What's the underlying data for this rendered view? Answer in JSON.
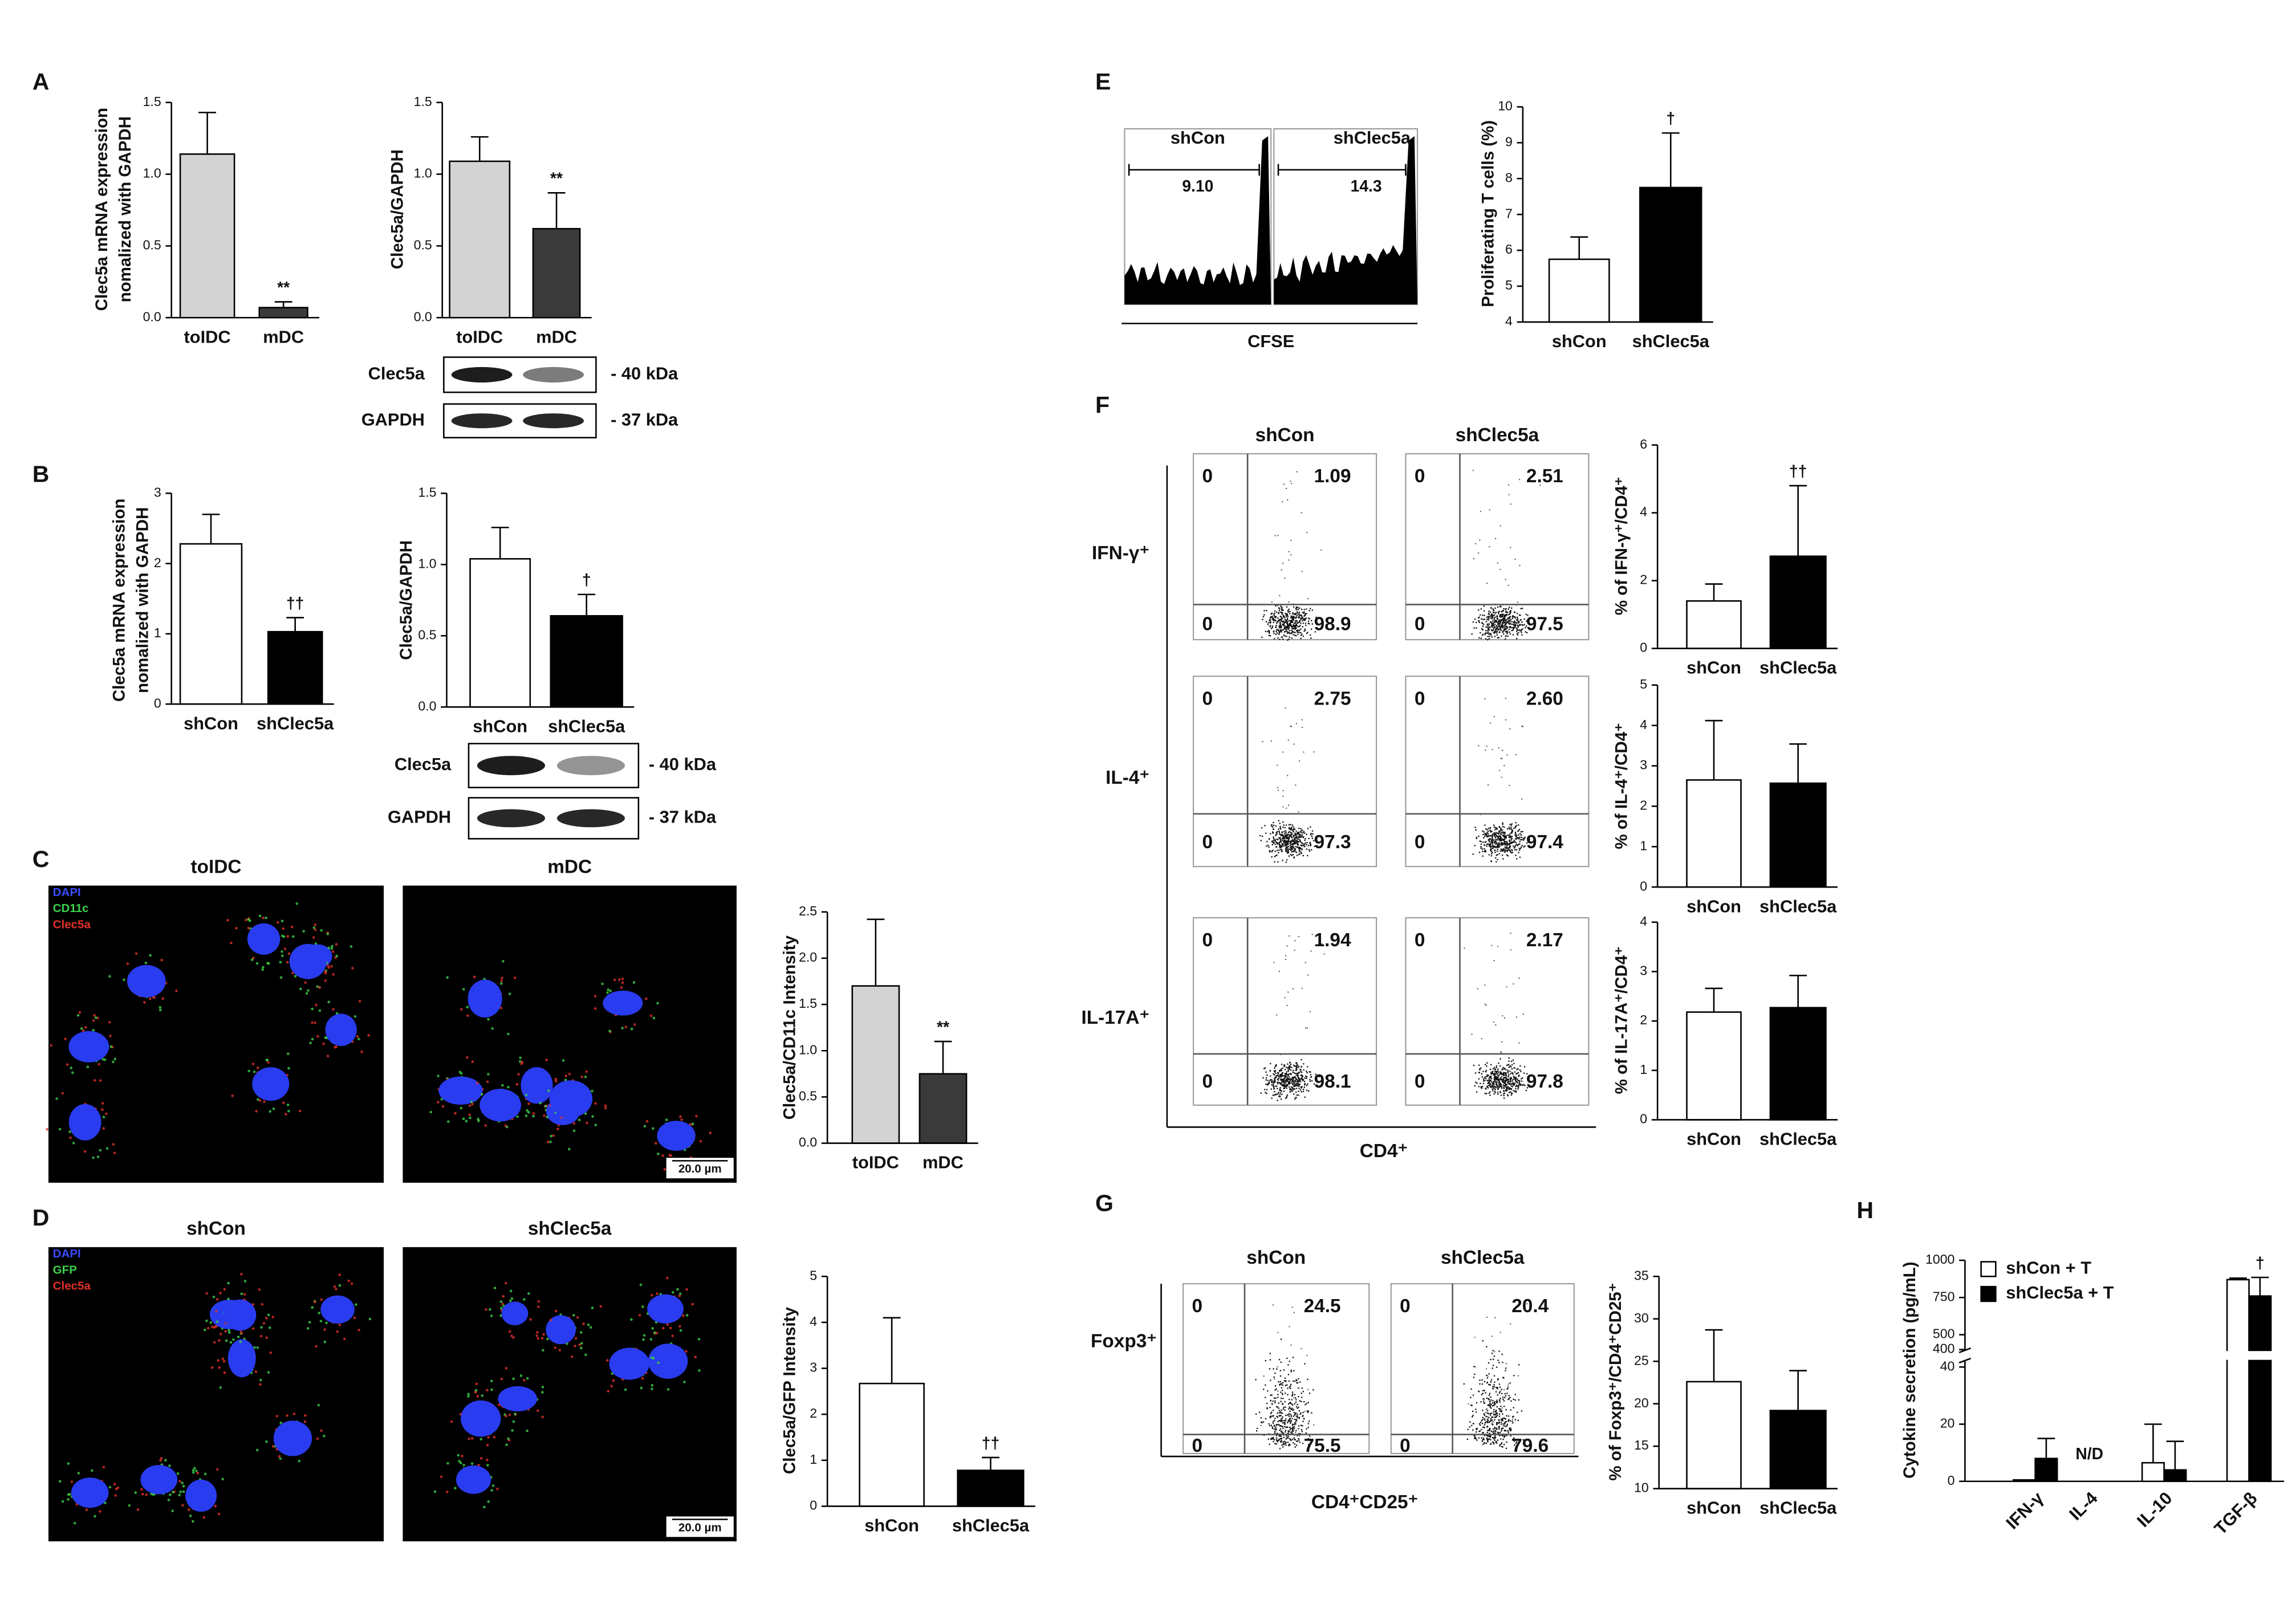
{
  "panel_labels": [
    "A",
    "B",
    "C",
    "D",
    "E",
    "F",
    "G",
    "H"
  ],
  "blots": {
    "A": {
      "rows": [
        "Clec5a",
        "GAPDH"
      ],
      "sizes": [
        "- 40 kDa",
        "- 37 kDa"
      ]
    },
    "B": {
      "rows": [
        "Clec5a",
        "GAPDH"
      ],
      "sizes": [
        "- 40 kDa",
        "- 37 kDa"
      ]
    }
  },
  "images": {
    "C": {
      "titles": [
        "toIDC",
        "mDC"
      ],
      "legend": [
        "DAPI",
        "CD11c",
        "Clec5a"
      ],
      "scale_bar": "20.0 µm"
    },
    "D": {
      "titles": [
        "shCon",
        "shClec5a"
      ],
      "legend": [
        "DAPI",
        "GFP",
        "Clec5a"
      ],
      "scale_bar": "20.0 µm"
    }
  },
  "histograms_E": {
    "titles": [
      "shCon",
      "shClec5a"
    ],
    "gates": [
      "9.10",
      "14.3"
    ],
    "xlabel": "CFSE"
  },
  "flow_F": {
    "columns": [
      "shCon",
      "shClec5a"
    ],
    "xlabel": "CD4⁺",
    "rows": [
      {
        "label": "IFN-γ⁺",
        "quadrants": [
          {
            "upper_left": "0",
            "upper_right": "1.09",
            "lower_left": "0",
            "lower_right": "98.9"
          },
          {
            "upper_left": "0",
            "upper_right": "2.51",
            "lower_left": "0",
            "lower_right": "97.5"
          }
        ]
      },
      {
        "label": "IL-4⁺",
        "quadrants": [
          {
            "upper_left": "0",
            "upper_right": "2.75",
            "lower_left": "0",
            "lower_right": "97.3"
          },
          {
            "upper_left": "0",
            "upper_right": "2.60",
            "lower_left": "0",
            "lower_right": "97.4"
          }
        ]
      },
      {
        "label": "IL-17A⁺",
        "quadrants": [
          {
            "upper_left": "0",
            "upper_right": "1.94",
            "lower_left": "0",
            "lower_right": "98.1"
          },
          {
            "upper_left": "0",
            "upper_right": "2.17",
            "lower_left": "0",
            "lower_right": "97.8"
          }
        ]
      }
    ]
  },
  "flow_G": {
    "columns": [
      "shCon",
      "shClec5a"
    ],
    "xlabel": "CD4⁺CD25⁺",
    "row_label": "Foxp3⁺",
    "quadrants": [
      {
        "upper_left": "0",
        "upper_right": "24.5",
        "lower_left": "0",
        "lower_right": "75.5"
      },
      {
        "upper_left": "0",
        "upper_right": "20.4",
        "lower_left": "0",
        "lower_right": "79.6"
      }
    ]
  },
  "chart_data": [
    {
      "type": "bar",
      "ylabel": [
        "Clec5a mRNA expression",
        "nomalized with GAPDH"
      ],
      "categories": [
        "toIDC",
        "mDC"
      ],
      "values": [
        1.14,
        0.07
      ],
      "errors": [
        0.29,
        0.04
      ],
      "colors": [
        "#d3d3d3",
        "#3a3a3a"
      ],
      "significance": [
        null,
        "**"
      ],
      "ylim": [
        0,
        1.5
      ],
      "yticks": [
        {
          "value": 0,
          "label": "0.0"
        },
        0.5,
        {
          "value": 1,
          "label": "1.0"
        },
        1.5
      ]
    },
    {
      "type": "bar",
      "ylabel": [
        "Clec5a/GAPDH"
      ],
      "categories": [
        "toIDC",
        "mDC"
      ],
      "values": [
        1.09,
        0.62
      ],
      "errors": [
        0.17,
        0.25
      ],
      "colors": [
        "#d3d3d3",
        "#3a3a3a"
      ],
      "significance": [
        null,
        "**"
      ],
      "ylim": [
        0,
        1.5
      ],
      "yticks": [
        {
          "value": 0,
          "label": "0.0"
        },
        0.5,
        {
          "value": 1,
          "label": "1.0"
        },
        1.5
      ]
    },
    {
      "type": "bar",
      "ylabel": [
        "Clec5a mRNA expression",
        "nomalized with GAPDH"
      ],
      "categories": [
        "shCon",
        "shClec5a"
      ],
      "values": [
        2.28,
        1.03
      ],
      "errors": [
        0.42,
        0.2
      ],
      "colors": [
        "#ffffff",
        "#000000"
      ],
      "significance": [
        null,
        "††"
      ],
      "ylim": [
        0,
        3
      ],
      "yticks": [
        0,
        1,
        2,
        3
      ]
    },
    {
      "type": "bar",
      "ylabel": [
        "Clec5a/GAPDH"
      ],
      "categories": [
        "shCon",
        "shClec5a"
      ],
      "values": [
        1.04,
        0.64
      ],
      "errors": [
        0.22,
        0.15
      ],
      "colors": [
        "#ffffff",
        "#000000"
      ],
      "significance": [
        null,
        "†"
      ],
      "ylim": [
        0,
        1.5
      ],
      "yticks": [
        {
          "value": 0,
          "label": "0.0"
        },
        0.5,
        {
          "value": 1,
          "label": "1.0"
        },
        1.5
      ]
    },
    {
      "type": "bar",
      "ylabel": [
        "Clec5a/CD11c Intensity"
      ],
      "categories": [
        "toIDC",
        "mDC"
      ],
      "values": [
        1.7,
        0.75
      ],
      "errors": [
        0.72,
        0.35
      ],
      "colors": [
        "#d3d3d3",
        "#3a3a3a"
      ],
      "significance": [
        null,
        "**"
      ],
      "ylim": [
        0,
        2.5
      ],
      "yticks": [
        {
          "value": 0,
          "label": "0.0"
        },
        0.5,
        {
          "value": 1,
          "label": "1.0"
        },
        1.5,
        {
          "value": 2,
          "label": "2.0"
        },
        2.5
      ]
    },
    {
      "type": "bar",
      "ylabel": [
        "Clec5a/GFP Intensity"
      ],
      "categories": [
        "shCon",
        "shClec5a"
      ],
      "values": [
        2.67,
        0.78
      ],
      "errors": [
        1.43,
        0.28
      ],
      "colors": [
        "#ffffff",
        "#000000"
      ],
      "significance": [
        null,
        "††"
      ],
      "ylim": [
        0,
        5
      ],
      "yticks": [
        0,
        1,
        2,
        3,
        4,
        5
      ]
    },
    {
      "type": "bar",
      "ylabel": [
        "Proliferating T cells (%)"
      ],
      "categories": [
        "shCon",
        "shClec5a"
      ],
      "values": [
        5.75,
        7.75
      ],
      "errors": [
        0.62,
        1.52
      ],
      "colors": [
        "#ffffff",
        "#000000"
      ],
      "significance": [
        null,
        "†"
      ],
      "ylim": [
        4,
        10
      ],
      "yticks": [
        4,
        5,
        6,
        7,
        8,
        9,
        10
      ]
    },
    {
      "type": "bar",
      "ylabel": [
        "% of IFN-γ⁺/CD4⁺"
      ],
      "categories": [
        "shCon",
        "shClec5a"
      ],
      "values": [
        1.4,
        2.72
      ],
      "errors": [
        0.5,
        2.08
      ],
      "colors": [
        "#ffffff",
        "#000000"
      ],
      "significance": [
        null,
        "††"
      ],
      "ylim": [
        0,
        6
      ],
      "yticks": [
        0,
        2,
        4,
        6
      ]
    },
    {
      "type": "bar",
      "ylabel": [
        "% of IL-4⁺/CD4⁺"
      ],
      "categories": [
        "shCon",
        "shClec5a"
      ],
      "values": [
        2.65,
        2.57
      ],
      "errors": [
        1.47,
        0.97
      ],
      "colors": [
        "#ffffff",
        "#000000"
      ],
      "significance": [
        null,
        null
      ],
      "ylim": [
        0,
        5
      ],
      "yticks": [
        0,
        1,
        2,
        3,
        4,
        5
      ]
    },
    {
      "type": "bar",
      "ylabel": [
        "% of IL-17A⁺/CD4⁺"
      ],
      "categories": [
        "shCon",
        "shClec5a"
      ],
      "values": [
        2.18,
        2.27
      ],
      "errors": [
        0.48,
        0.65
      ],
      "colors": [
        "#ffffff",
        "#000000"
      ],
      "significance": [
        null,
        null
      ],
      "ylim": [
        0,
        4
      ],
      "yticks": [
        0,
        1,
        2,
        3,
        4
      ]
    },
    {
      "type": "bar",
      "ylabel": [
        "% of Foxp3⁺/CD4⁺CD25⁺"
      ],
      "categories": [
        "shCon",
        "shClec5a"
      ],
      "values": [
        22.6,
        19.2
      ],
      "errors": [
        6.1,
        4.7
      ],
      "colors": [
        "#ffffff",
        "#000000"
      ],
      "significance": [
        null,
        null
      ],
      "ylim": [
        10,
        35
      ],
      "yticks": [
        10,
        15,
        20,
        25,
        30,
        35
      ]
    },
    {
      "type": "broken-bar",
      "ylabel": [
        "Cytokine secretion (pg/mL)"
      ],
      "categories": [
        "IFN-γ",
        "IL-4",
        "IL-10",
        "TGF-β"
      ],
      "category_notes": [
        null,
        "N/D",
        null,
        null
      ],
      "series": [
        {
          "name": "shCon + T",
          "color": "#ffffff",
          "values": [
            0.5,
            null,
            6.5,
            870
          ],
          "errors": [
            null,
            null,
            13.5,
            10
          ],
          "significance": [
            null,
            null,
            null,
            null
          ]
        },
        {
          "name": "shClec5a + T",
          "color": "#000000",
          "values": [
            8,
            null,
            4,
            760
          ],
          "errors": [
            7,
            null,
            10,
            125
          ],
          "significance": [
            null,
            null,
            null,
            "†"
          ]
        }
      ],
      "ylim": [
        0,
        1000
      ],
      "axis_break": [
        42,
        400
      ],
      "yticks": [
        0,
        20,
        40,
        400,
        500,
        750,
        1000
      ]
    }
  ]
}
